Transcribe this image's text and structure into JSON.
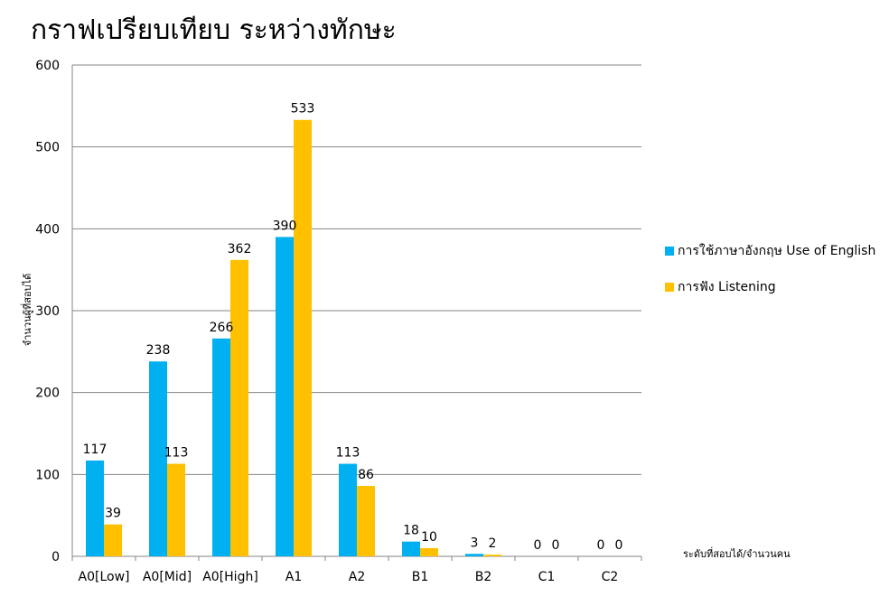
{
  "chart_data": {
    "type": "bar",
    "title": "กราฟเปรียบเทียบ ระหว่างทักษะ",
    "xlabel": "ระดับที่สอบได้/จำนวนคน",
    "ylabel": "จำนวนผู้ที่สอบได้",
    "ylim": [
      0,
      600
    ],
    "yticks": [
      0,
      100,
      200,
      300,
      400,
      500,
      600
    ],
    "grid": true,
    "legend_position": "right",
    "categories": [
      "A0[Low]",
      "A0[Mid]",
      "A0[High]",
      "A1",
      "A2",
      "B1",
      "B2",
      "C1",
      "C2"
    ],
    "series": [
      {
        "name": "การใช้ภาษาอังกฤษ Use of English",
        "color": "#00B0F0",
        "values": [
          117,
          238,
          266,
          390,
          113,
          18,
          3,
          0,
          0
        ]
      },
      {
        "name": "การฟัง Listening",
        "color": "#FFC000",
        "values": [
          39,
          113,
          362,
          533,
          86,
          10,
          2,
          0,
          0
        ]
      }
    ]
  }
}
